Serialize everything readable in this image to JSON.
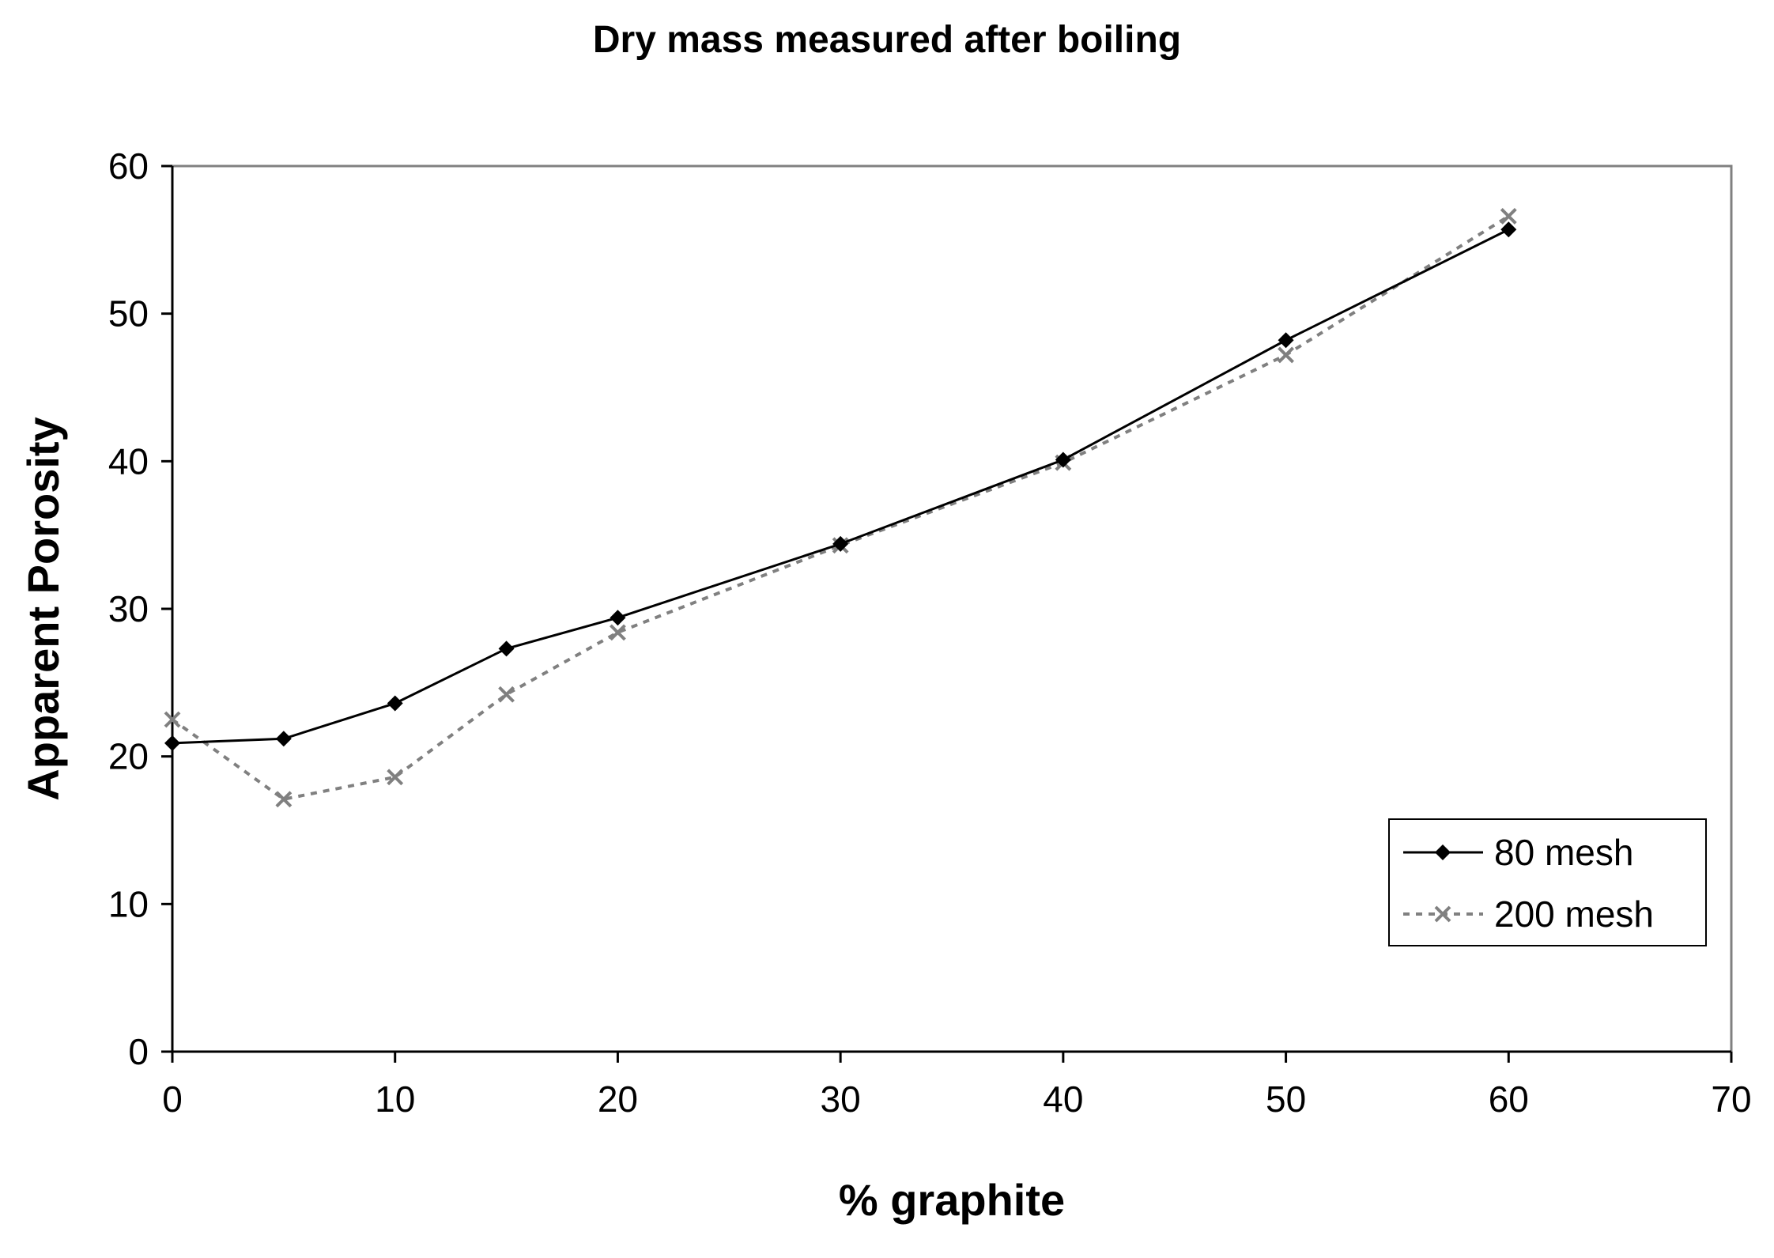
{
  "chart_data": {
    "type": "line",
    "title": "Dry mass measured after boiling",
    "xlabel": "% graphite",
    "ylabel": "Apparent Porosity",
    "xlim": [
      0,
      70
    ],
    "ylim": [
      0,
      60
    ],
    "xticks": [
      0,
      10,
      20,
      30,
      40,
      50,
      60,
      70
    ],
    "yticks": [
      0,
      10,
      20,
      30,
      40,
      50,
      60
    ],
    "grid": false,
    "legend_position": "bottom-right",
    "series": [
      {
        "name": "80 mesh",
        "color": "#000000",
        "marker": "diamond",
        "line_style": "solid",
        "x": [
          0,
          5,
          10,
          15,
          20,
          30,
          40,
          50,
          60
        ],
        "y": [
          20.9,
          21.2,
          23.6,
          27.3,
          29.4,
          34.4,
          40.1,
          48.2,
          55.7
        ]
      },
      {
        "name": "200 mesh",
        "color": "#808080",
        "marker": "x",
        "line_style": "dotted",
        "x": [
          0,
          5,
          10,
          15,
          20,
          30,
          40,
          50,
          60
        ],
        "y": [
          22.5,
          17.1,
          18.6,
          24.2,
          28.4,
          34.3,
          39.9,
          47.2,
          56.6
        ]
      }
    ]
  }
}
